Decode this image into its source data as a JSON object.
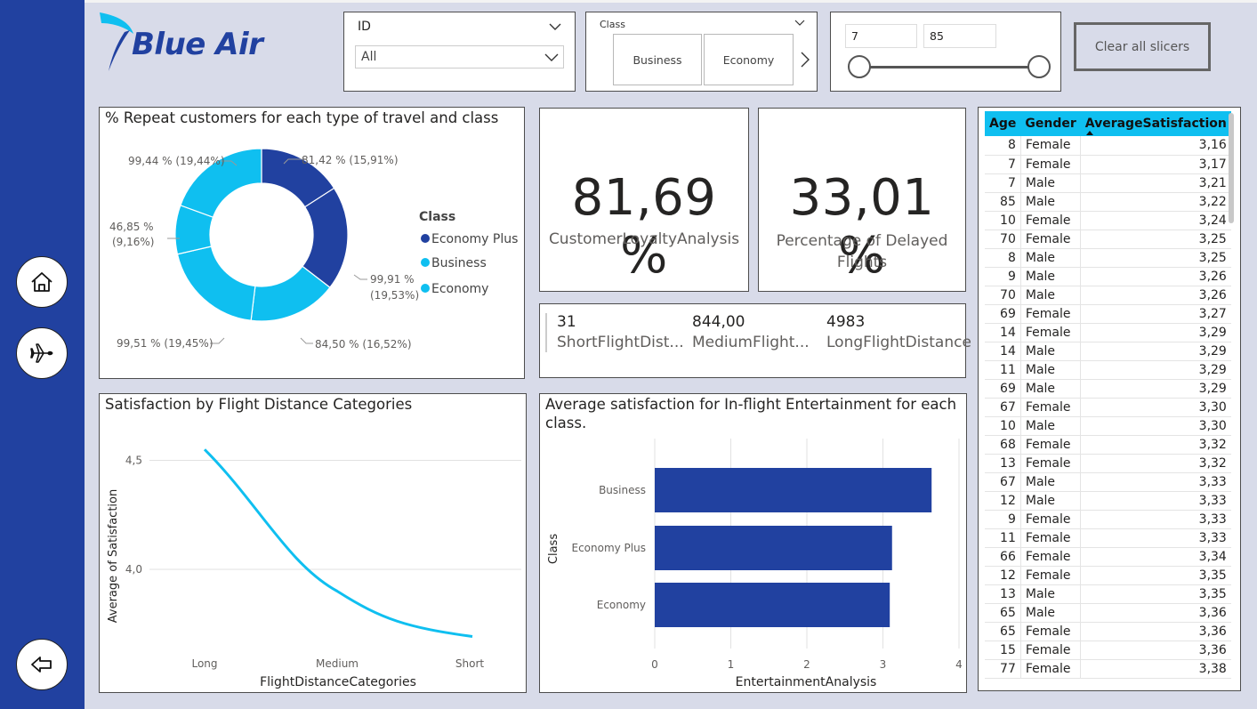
{
  "brand": {
    "name": "Blue Air"
  },
  "nav": {
    "home_icon": "home-icon",
    "flight_icon": "airplane-icon",
    "back_icon": "back-arrow-icon"
  },
  "slicers": {
    "id": {
      "label": "ID",
      "value": "All"
    },
    "class": {
      "label": "Class",
      "tiles": [
        "Business",
        "Economy"
      ]
    },
    "range": {
      "min": "7",
      "max": "85"
    },
    "clear_label": "Clear all slicers"
  },
  "donut": {
    "title": "% Repeat customers for each type of travel and class",
    "legend_title": "Class",
    "legend": [
      {
        "name": "Economy Plus",
        "color": "#2141a0"
      },
      {
        "name": "Business",
        "color": "#0fbff0"
      },
      {
        "name": "Economy",
        "color": "#0fbff0"
      }
    ],
    "labels": [
      {
        "line1": "81,42 % (15,91%)",
        "line2": ""
      },
      {
        "line1": "99,91 %",
        "line2": "(19,53%)"
      },
      {
        "line1": "84,50 % (16,52%)",
        "line2": ""
      },
      {
        "line1": "99,51 % (19,45%)",
        "line2": ""
      },
      {
        "line1": "46,85 %",
        "line2": "(9,16%)"
      },
      {
        "line1": "99,44 % (19,44%)",
        "line2": ""
      }
    ]
  },
  "kpis": [
    {
      "value": "81,69 %",
      "label": "CustomerLoyaltyAnalysis"
    },
    {
      "value": "33,01 %",
      "label": "Percentage of Delayed Flights"
    }
  ],
  "distances": [
    {
      "value": "31",
      "label": "ShortFlightDist..."
    },
    {
      "value": "844,00",
      "label": "MediumFlight..."
    },
    {
      "value": "4983",
      "label": "LongFlightDistance"
    }
  ],
  "line_chart": {
    "title": "Satisfaction by Flight Distance Categories"
  },
  "bar_chart": {
    "title_line1": "Average satisfaction for In-flight Entertainment for each",
    "title_line2": "class."
  },
  "table": {
    "headers": [
      "Age",
      "Gender",
      "AverageSatisfaction"
    ],
    "rows": [
      [
        "8",
        "Female",
        "3,16"
      ],
      [
        "7",
        "Female",
        "3,17"
      ],
      [
        "7",
        "Male",
        "3,21"
      ],
      [
        "85",
        "Male",
        "3,22"
      ],
      [
        "10",
        "Female",
        "3,24"
      ],
      [
        "70",
        "Female",
        "3,25"
      ],
      [
        "8",
        "Male",
        "3,25"
      ],
      [
        "9",
        "Male",
        "3,26"
      ],
      [
        "70",
        "Male",
        "3,26"
      ],
      [
        "69",
        "Female",
        "3,27"
      ],
      [
        "14",
        "Female",
        "3,29"
      ],
      [
        "14",
        "Male",
        "3,29"
      ],
      [
        "11",
        "Male",
        "3,29"
      ],
      [
        "69",
        "Male",
        "3,29"
      ],
      [
        "67",
        "Female",
        "3,30"
      ],
      [
        "10",
        "Male",
        "3,30"
      ],
      [
        "68",
        "Female",
        "3,32"
      ],
      [
        "13",
        "Female",
        "3,32"
      ],
      [
        "67",
        "Male",
        "3,33"
      ],
      [
        "12",
        "Male",
        "3,33"
      ],
      [
        "9",
        "Female",
        "3,33"
      ],
      [
        "11",
        "Female",
        "3,33"
      ],
      [
        "66",
        "Female",
        "3,34"
      ],
      [
        "12",
        "Female",
        "3,35"
      ],
      [
        "13",
        "Male",
        "3,35"
      ],
      [
        "65",
        "Male",
        "3,36"
      ],
      [
        "65",
        "Female",
        "3,36"
      ],
      [
        "15",
        "Female",
        "3,36"
      ],
      [
        "77",
        "Female",
        "3,38"
      ]
    ]
  },
  "chart_data": [
    {
      "type": "pie",
      "title": "% Repeat customers for each type of travel and class",
      "legend_title": "Class",
      "legend_placement": "right",
      "slices": [
        {
          "label": "81,42 % (15,91%)",
          "share": 15.91,
          "color": "#2141a0"
        },
        {
          "label": "99,91 % (19,53%)",
          "share": 19.53,
          "color": "#2141a0"
        },
        {
          "label": "84,50 % (16,52%)",
          "share": 16.52,
          "color": "#0fbff0"
        },
        {
          "label": "99,51 % (19,45%)",
          "share": 19.45,
          "color": "#0fbff0"
        },
        {
          "label": "46,85 % (9,16%)",
          "share": 9.16,
          "color": "#0fbff0"
        },
        {
          "label": "99,44 % (19,44%)",
          "share": 19.44,
          "color": "#0fbff0"
        }
      ]
    },
    {
      "type": "line",
      "title": "Satisfaction by Flight Distance Categories",
      "xlabel": "FlightDistanceCategories",
      "ylabel": "Average of Satisfaction",
      "categories": [
        "Long",
        "Medium",
        "Short"
      ],
      "values": [
        4.55,
        3.9,
        3.7
      ],
      "yticks": [
        "4,0",
        "4,5"
      ],
      "ylim": [
        3.6,
        4.6
      ],
      "color": "#0fbff0",
      "grid": true
    },
    {
      "type": "bar",
      "orientation": "horizontal",
      "title": "Average satisfaction for In-flight Entertainment for each class.",
      "xlabel": "EntertainmentAnalysis",
      "ylabel": "Class",
      "categories": [
        "Business",
        "Economy Plus",
        "Economy"
      ],
      "values": [
        3.64,
        3.12,
        3.09
      ],
      "xticks": [
        "0",
        "1",
        "2",
        "3",
        "4"
      ],
      "xlim": [
        0,
        4
      ],
      "color": "#2141a0",
      "grid": true
    }
  ]
}
